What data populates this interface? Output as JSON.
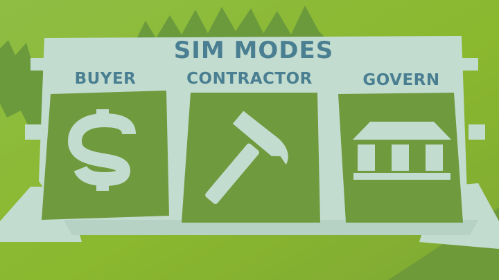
{
  "title": "SIM MODES",
  "modes": [
    {
      "id": "buyer",
      "label": "BUYER",
      "icon": "dollar-icon"
    },
    {
      "id": "contractor",
      "label": "CONTRACTOR",
      "icon": "hammer-icon"
    },
    {
      "id": "govern",
      "label": "GOVERN",
      "icon": "government-building-icon"
    }
  ],
  "colors": {
    "background_light": "#9cc245",
    "background_dark": "#6c9e3c",
    "board": "#c3dcd0",
    "panel": "#6f9a3d",
    "text": "#4a7f92",
    "icon": "#c3dcd0"
  }
}
